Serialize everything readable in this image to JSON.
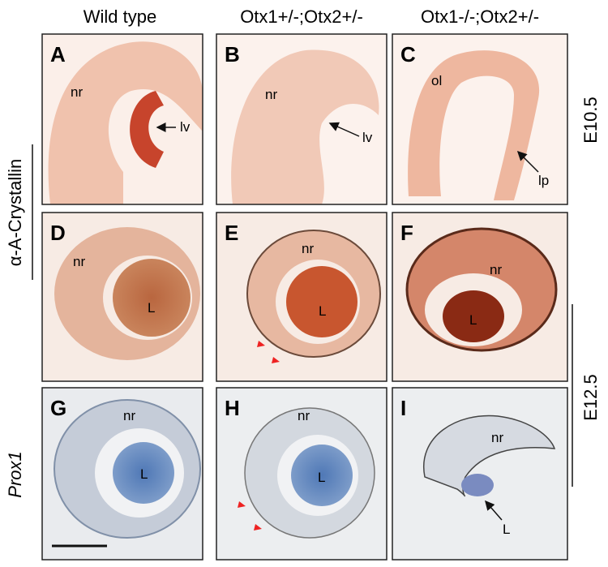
{
  "header": {
    "columns": [
      "Wild type",
      "Otx1+/-;Otx2+/-",
      "Otx1-/-;Otx2+/-"
    ]
  },
  "rows": {
    "left": [
      "α-A-Crystallin",
      "Prox1"
    ],
    "right": [
      "E10.5",
      "E12.5"
    ]
  },
  "panels": [
    {
      "letter": "A",
      "labels": [
        "nr",
        "lv"
      ]
    },
    {
      "letter": "B",
      "labels": [
        "nr",
        "lv"
      ]
    },
    {
      "letter": "C",
      "labels": [
        "ol",
        "lp"
      ]
    },
    {
      "letter": "D",
      "labels": [
        "nr",
        "L"
      ]
    },
    {
      "letter": "E",
      "labels": [
        "nr",
        "L"
      ]
    },
    {
      "letter": "F",
      "labels": [
        "nr",
        "L"
      ]
    },
    {
      "letter": "G",
      "labels": [
        "nr",
        "L"
      ]
    },
    {
      "letter": "H",
      "labels": [
        "nr",
        "L"
      ]
    },
    {
      "letter": "I",
      "labels": [
        "nr",
        "L"
      ]
    }
  ]
}
